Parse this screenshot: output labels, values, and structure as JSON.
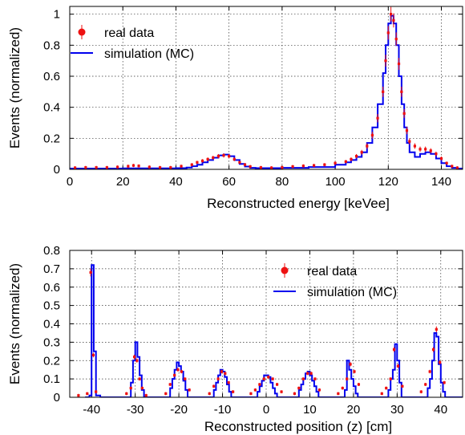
{
  "chart_data": [
    {
      "type": "line",
      "xlabel": "Reconstructed energy [keVee]",
      "ylabel": "Events (normalized)",
      "xlim": [
        0,
        148
      ],
      "ylim": [
        0,
        1.05
      ],
      "xticks": [
        "0",
        "20",
        "40",
        "60",
        "80",
        "100",
        "120",
        "140"
      ],
      "yticks": [
        "0",
        "0.2",
        "0.4",
        "0.6",
        "0.8",
        "1"
      ],
      "grid": true,
      "legend_position": "top-left",
      "legend": [
        "real data",
        "simulation (MC)"
      ],
      "series": [
        {
          "name": "simulation (MC)",
          "style": "step",
          "color": "#0000ee",
          "x": [
            0,
            10,
            20,
            30,
            40,
            44,
            46,
            48,
            50,
            52,
            54,
            56,
            58,
            60,
            62,
            64,
            66,
            68,
            70,
            80,
            90,
            100,
            104,
            106,
            108,
            110,
            112,
            114,
            116,
            118,
            119,
            120,
            121,
            122,
            123,
            124,
            125,
            126,
            127,
            128,
            130,
            132,
            134,
            136,
            138,
            140,
            142,
            144,
            146
          ],
          "values": [
            0.005,
            0.005,
            0.006,
            0.006,
            0.008,
            0.012,
            0.02,
            0.03,
            0.045,
            0.06,
            0.075,
            0.09,
            0.095,
            0.085,
            0.06,
            0.035,
            0.018,
            0.01,
            0.008,
            0.01,
            0.015,
            0.03,
            0.045,
            0.06,
            0.08,
            0.11,
            0.17,
            0.27,
            0.42,
            0.62,
            0.8,
            0.94,
            0.99,
            0.94,
            0.8,
            0.6,
            0.42,
            0.27,
            0.17,
            0.11,
            0.08,
            0.1,
            0.11,
            0.1,
            0.07,
            0.04,
            0.02,
            0.01,
            0.005
          ]
        },
        {
          "name": "real data",
          "style": "points",
          "color": "#ee1111",
          "x": [
            2,
            6,
            10,
            14,
            18,
            22,
            24,
            26,
            30,
            34,
            38,
            42,
            46,
            48,
            50,
            52,
            54,
            56,
            58,
            60,
            62,
            64,
            66,
            68,
            72,
            76,
            80,
            84,
            88,
            92,
            96,
            100,
            104,
            106,
            108,
            110,
            112,
            114,
            116,
            118,
            119,
            120,
            121,
            122,
            123,
            124,
            125,
            126,
            127,
            128,
            130,
            132,
            134,
            136,
            138,
            140,
            142,
            144,
            146
          ],
          "values": [
            0.01,
            0.012,
            0.012,
            0.012,
            0.015,
            0.02,
            0.025,
            0.022,
            0.015,
            0.012,
            0.012,
            0.02,
            0.03,
            0.045,
            0.055,
            0.065,
            0.075,
            0.085,
            0.09,
            0.085,
            0.065,
            0.045,
            0.03,
            0.018,
            0.012,
            0.01,
            0.012,
            0.018,
            0.022,
            0.025,
            0.03,
            0.04,
            0.05,
            0.065,
            0.085,
            0.11,
            0.15,
            0.22,
            0.33,
            0.5,
            0.7,
            0.88,
            1.0,
            0.96,
            0.84,
            0.68,
            0.5,
            0.36,
            0.25,
            0.18,
            0.15,
            0.13,
            0.13,
            0.12,
            0.1,
            0.07,
            0.04,
            0.02,
            0.01
          ]
        }
      ]
    },
    {
      "type": "line",
      "xlabel": "Reconstructed position (z) [cm]",
      "ylabel": "Events (normalized)",
      "xlim": [
        -45,
        45
      ],
      "ylim": [
        0,
        0.8
      ],
      "xticks": [
        "-40",
        "-30",
        "-20",
        "-10",
        "0",
        "10",
        "20",
        "30",
        "40"
      ],
      "yticks": [
        "0",
        "0.1",
        "0.2",
        "0.3",
        "0.4",
        "0.5",
        "0.6",
        "0.7",
        "0.8"
      ],
      "grid": true,
      "legend_position": "top-right",
      "legend": [
        "real data",
        "simulation (MC)"
      ],
      "series": [
        {
          "name": "simulation (MC)",
          "style": "step",
          "color": "#0000ee",
          "x": [
            -41.5,
            -40.5,
            -40,
            -39.5,
            -39,
            -38,
            -32,
            -31,
            -30.5,
            -30,
            -29.5,
            -29,
            -28.5,
            -28,
            -22.5,
            -22,
            -21.5,
            -21,
            -20.5,
            -20,
            -19.5,
            -19,
            -18.5,
            -18,
            -12.5,
            -12,
            -11.5,
            -11,
            -10.5,
            -10,
            -9.5,
            -9,
            -8.5,
            -8,
            -3,
            -2,
            -1.5,
            -1,
            -0.5,
            0,
            0.5,
            1,
            1.5,
            2,
            2.5,
            7,
            7.5,
            8,
            8.5,
            9,
            9.5,
            10,
            10.5,
            11,
            11.5,
            12,
            17.5,
            18,
            18.5,
            19,
            19.5,
            20,
            20.5,
            21,
            27,
            28,
            28.5,
            29,
            29.5,
            30,
            30.5,
            31,
            36.5,
            37,
            37.5,
            38,
            38.5,
            39,
            39.5,
            40,
            40.5,
            41
          ],
          "values": [
            0,
            0.01,
            0.72,
            0.25,
            0.01,
            0,
            0,
            0.08,
            0.2,
            0.3,
            0.22,
            0.12,
            0.04,
            0,
            0,
            0.05,
            0.1,
            0.15,
            0.19,
            0.17,
            0.14,
            0.09,
            0.04,
            0,
            0,
            0.04,
            0.08,
            0.12,
            0.15,
            0.14,
            0.11,
            0.07,
            0.03,
            0,
            0,
            0.03,
            0.06,
            0.09,
            0.12,
            0.12,
            0.11,
            0.08,
            0.05,
            0.02,
            0,
            0,
            0.04,
            0.07,
            0.1,
            0.13,
            0.14,
            0.12,
            0.09,
            0.06,
            0.03,
            0,
            0,
            0.04,
            0.2,
            0.15,
            0.1,
            0.06,
            0.02,
            0,
            0,
            0.04,
            0.1,
            0.15,
            0.29,
            0.2,
            0.08,
            0,
            0,
            0.05,
            0.1,
            0.2,
            0.35,
            0.33,
            0.18,
            0.08,
            0.03,
            0
          ]
        },
        {
          "name": "real data",
          "style": "points",
          "color": "#ee1111",
          "x": [
            -43,
            -41,
            -40.2,
            -39.6,
            -39,
            -32,
            -31,
            -30.2,
            -29.6,
            -29,
            -28.4,
            -27.5,
            -23,
            -22,
            -21,
            -20.2,
            -19.4,
            -18.6,
            -17.6,
            -13,
            -12,
            -11,
            -10.2,
            -9.4,
            -8.6,
            -7.6,
            -3.5,
            -2.5,
            -1.5,
            -0.5,
            0.5,
            1.5,
            2.5,
            3.5,
            6.5,
            7.5,
            8.5,
            9.5,
            10.3,
            11.2,
            12.2,
            16.5,
            17.5,
            18.5,
            19.3,
            20.2,
            21.2,
            26.5,
            27.5,
            28.5,
            29.3,
            30.2,
            31.2,
            35.5,
            36.5,
            37.5,
            38.3,
            39,
            39.8,
            40.8
          ],
          "values": [
            0.01,
            0.02,
            0.68,
            0.23,
            0.03,
            0.02,
            0.05,
            0.22,
            0.2,
            0.1,
            0.05,
            0.01,
            0.02,
            0.07,
            0.12,
            0.15,
            0.14,
            0.1,
            0.04,
            0.02,
            0.06,
            0.1,
            0.14,
            0.13,
            0.08,
            0.03,
            0.02,
            0.04,
            0.07,
            0.1,
            0.11,
            0.1,
            0.07,
            0.03,
            0.02,
            0.05,
            0.1,
            0.13,
            0.13,
            0.1,
            0.04,
            0.02,
            0.05,
            0.1,
            0.18,
            0.14,
            0.07,
            0.02,
            0.05,
            0.1,
            0.26,
            0.17,
            0.06,
            0.03,
            0.07,
            0.14,
            0.26,
            0.37,
            0.19,
            0.08
          ]
        }
      ]
    }
  ]
}
